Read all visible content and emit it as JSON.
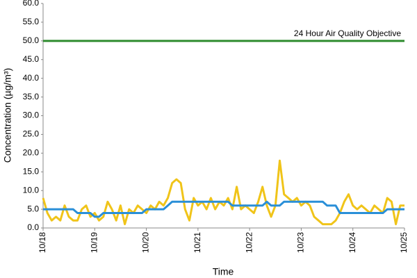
{
  "chart_data": {
    "type": "line",
    "y_label": "Concentration (µg/m³)",
    "x_label": "Time",
    "categories": [
      "10/18",
      null,
      null,
      null,
      null,
      null,
      null,
      null,
      null,
      null,
      null,
      null,
      "10/19",
      null,
      null,
      null,
      null,
      null,
      null,
      null,
      null,
      null,
      null,
      null,
      "10/20",
      null,
      null,
      null,
      null,
      null,
      null,
      null,
      null,
      null,
      null,
      null,
      "10/21",
      null,
      null,
      null,
      null,
      null,
      null,
      null,
      null,
      null,
      null,
      null,
      "10/22",
      null,
      null,
      null,
      null,
      null,
      null,
      null,
      null,
      null,
      null,
      null,
      "10/23",
      null,
      null,
      null,
      null,
      null,
      null,
      null,
      null,
      null,
      null,
      null,
      "10/24",
      null,
      null,
      null,
      null,
      null,
      null,
      null,
      null,
      null,
      null,
      null,
      "10/25"
    ],
    "series": [
      {
        "color": "#f0c419",
        "values": [
          8,
          4,
          2,
          3,
          2,
          6,
          3,
          2,
          2,
          5,
          6,
          3,
          4,
          2,
          3,
          7,
          5,
          2,
          6,
          1,
          5,
          4,
          6,
          5,
          4,
          6,
          5,
          7,
          6,
          8,
          12,
          13,
          12,
          5,
          2,
          8,
          6,
          7,
          5,
          8,
          5,
          7,
          6,
          8,
          5,
          11,
          5,
          6,
          5,
          4,
          7,
          11,
          6,
          3,
          6,
          18,
          9,
          8,
          7,
          8,
          6,
          7,
          6,
          3,
          2,
          1,
          1,
          1,
          2,
          4,
          7,
          9,
          6,
          5,
          6,
          5,
          4,
          6,
          5,
          4,
          8,
          7,
          1,
          6,
          6
        ]
      },
      {
        "color": "#2a8fd8",
        "values": [
          5,
          5,
          5,
          5,
          5,
          5,
          5,
          5,
          4,
          4,
          4,
          4,
          3,
          3,
          4,
          4,
          4,
          4,
          4,
          4,
          4,
          4,
          4,
          4,
          5,
          5,
          5,
          5,
          5,
          6,
          7,
          7,
          7,
          7,
          7,
          7,
          7,
          7,
          7,
          7,
          7,
          7,
          7,
          7,
          6,
          6,
          6,
          6,
          6,
          6,
          6,
          6,
          7,
          6,
          6,
          6,
          7,
          7,
          7,
          7,
          7,
          7,
          7,
          7,
          7,
          7,
          6,
          6,
          6,
          4,
          4,
          4,
          4,
          4,
          4,
          4,
          4,
          4,
          4,
          4,
          5,
          5,
          5,
          5,
          5
        ]
      }
    ],
    "reference_line": {
      "label": "24 Hour Air Quality Objective",
      "value": 50,
      "color": "#2e8b2e"
    },
    "ylim": [
      0,
      60
    ],
    "yticks": [
      {
        "value": 0,
        "label": "0.0"
      },
      {
        "value": 5,
        "label": "5.0"
      },
      {
        "value": 10,
        "label": "10.0"
      },
      {
        "value": 15,
        "label": "15.0"
      },
      {
        "value": 20,
        "label": "20.0"
      },
      {
        "value": 25,
        "label": "25.0"
      },
      {
        "value": 30,
        "label": "30.0"
      },
      {
        "value": 35,
        "label": "35.0"
      },
      {
        "value": 40,
        "label": "40.0"
      },
      {
        "value": 45,
        "label": "45.0"
      },
      {
        "value": 50,
        "label": "50.0"
      },
      {
        "value": 55,
        "label": "55.0"
      },
      {
        "value": 60,
        "label": "60.0"
      }
    ]
  }
}
